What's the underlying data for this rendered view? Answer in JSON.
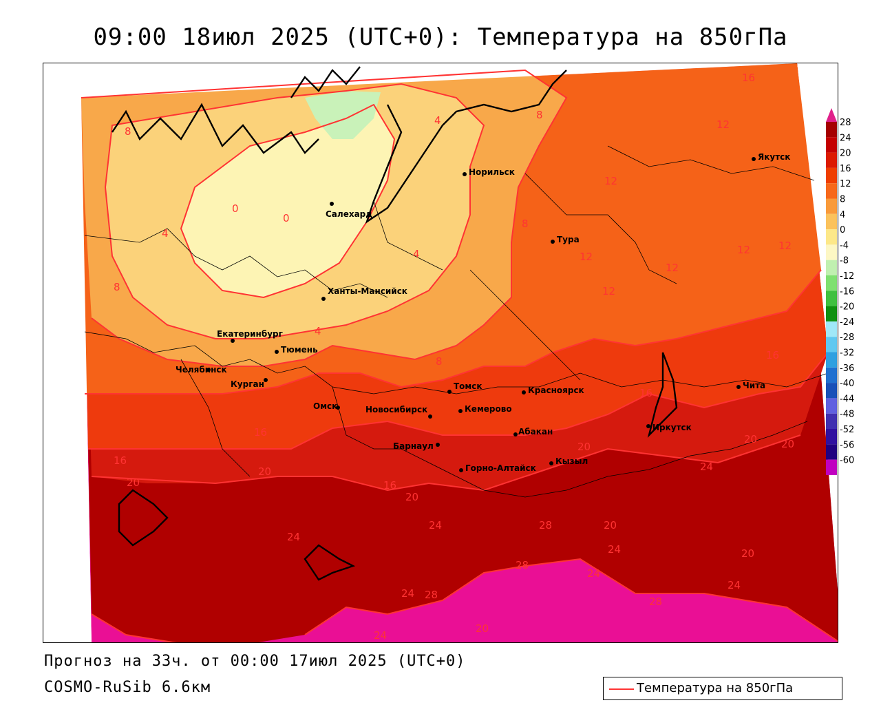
{
  "title": "09:00 18июл 2025 (UTC+0): Температура на 850гПа",
  "forecast_line": "Прогноз на 33ч. от 00:00 17июл 2025 (UTC+0)",
  "model_line": "COSMO-RuSib 6.6км",
  "legend": {
    "label": "Температура на 850гПа",
    "color": "#ff3333"
  },
  "colors": {
    "magenta": "#ea0f95",
    "darkred": "#b00000",
    "red": "#d51a0e",
    "redorange": "#ee3a0d",
    "orange": "#f56218",
    "lightorange": "#f8a84a",
    "tan": "#fbd27a",
    "paleyellow": "#fdf4b4",
    "palegreen": "#c9f2b9",
    "contour": "#ff3333"
  },
  "color_scale": {
    "values": [
      "28",
      "24",
      "20",
      "16",
      "12",
      "8",
      "4",
      "0",
      "-4",
      "-8",
      "-12",
      "-16",
      "-20",
      "-24",
      "-28",
      "-32",
      "-36",
      "-40",
      "-44",
      "-48",
      "-52",
      "-56",
      "-60"
    ],
    "colors": [
      "#a50000",
      "#c40000",
      "#dc1a00",
      "#ef3e00",
      "#f7681a",
      "#f99a3a",
      "#fbc25c",
      "#fde889",
      "#fdf7c4",
      "#c0f0b0",
      "#7fe070",
      "#40c040",
      "#109010",
      "#a0e8f8",
      "#60c8f0",
      "#30a0e0",
      "#2070d0",
      "#1850b8",
      "#6060e0",
      "#4030b0",
      "#3010a0",
      "#200080",
      "#c000c0"
    ]
  },
  "cities": [
    {
      "name": "Салехард"
    },
    {
      "name": "Норильск"
    },
    {
      "name": "Якутск"
    },
    {
      "name": "Тура"
    },
    {
      "name": "Ханты-Мансийск"
    },
    {
      "name": "Екатеринбург"
    },
    {
      "name": "Тюмень"
    },
    {
      "name": "Челябинск"
    },
    {
      "name": "Курган"
    },
    {
      "name": "Омск"
    },
    {
      "name": "Новосибирск"
    },
    {
      "name": "Томск"
    },
    {
      "name": "Кемерово"
    },
    {
      "name": "Красноярск"
    },
    {
      "name": "Абакан"
    },
    {
      "name": "Иркутск"
    },
    {
      "name": "Чита"
    },
    {
      "name": "Барнаул"
    },
    {
      "name": "Горно-Алтайск"
    },
    {
      "name": "Кызыл"
    }
  ],
  "isotherm_labels": [
    "16",
    "8",
    "4",
    "8",
    "12",
    "0",
    "0",
    "4",
    "4",
    "8",
    "12",
    "12",
    "12",
    "12",
    "12",
    "12",
    "8",
    "4",
    "8",
    "16",
    "16",
    "16",
    "20",
    "20",
    "20",
    "20",
    "24",
    "24",
    "24",
    "28",
    "28",
    "24",
    "24",
    "28",
    "20",
    "24",
    "20",
    "24",
    "20",
    "28",
    "20",
    "24",
    "16",
    "16",
    "20"
  ]
}
